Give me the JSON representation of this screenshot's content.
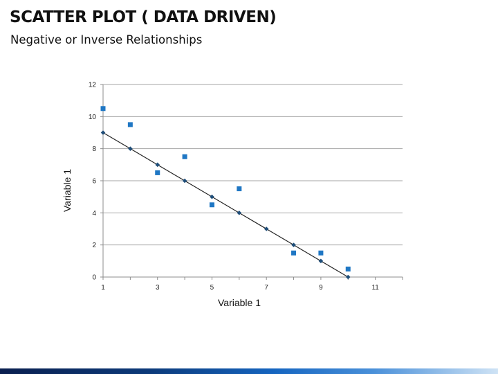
{
  "header": {
    "title": "SCATTER PLOT ( DATA DRIVEN)",
    "subtitle": "Negative or Inverse Relationships"
  },
  "chart_data": {
    "type": "scatter",
    "title": "",
    "xlabel": "Variable 1",
    "ylabel": "Variable 1",
    "xlim": [
      1,
      12
    ],
    "ylim": [
      0,
      12
    ],
    "xticks": [
      1,
      3,
      5,
      7,
      9,
      11
    ],
    "yticks": [
      0,
      2,
      4,
      6,
      8,
      10,
      12
    ],
    "grid": "horizontal",
    "legend": "none",
    "series": [
      {
        "marker": "square",
        "color": "#1f77c4",
        "points": [
          [
            1,
            10.5
          ],
          [
            2,
            9.5
          ],
          [
            3,
            6.5
          ],
          [
            4,
            7.5
          ],
          [
            5,
            4.5
          ],
          [
            6,
            5.5
          ],
          [
            8,
            1.5
          ],
          [
            9,
            1.5
          ],
          [
            10,
            0.5
          ]
        ]
      },
      {
        "marker": "diamond",
        "line": true,
        "color": "#1f4e79",
        "line_color": "#222222",
        "points": [
          [
            1,
            9
          ],
          [
            2,
            8
          ],
          [
            3,
            7
          ],
          [
            4,
            6
          ],
          [
            5,
            5
          ],
          [
            6,
            4
          ],
          [
            7,
            3
          ],
          [
            8,
            2
          ],
          [
            9,
            1
          ],
          [
            10,
            0
          ]
        ]
      }
    ]
  },
  "footer": {
    "bar_color": "#0c3a7a"
  }
}
